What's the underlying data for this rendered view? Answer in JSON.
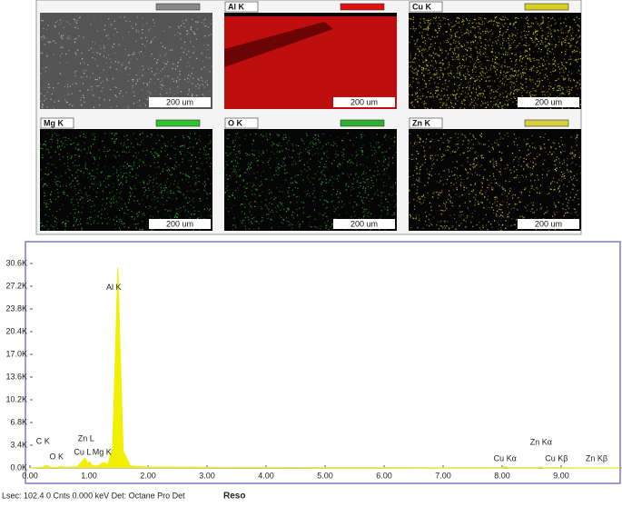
{
  "maps": [
    {
      "color": "#c8c8c8",
      "scale": "200 um"
    },
    {
      "label": "Al K",
      "color": "#e01010",
      "scale": "200 um"
    },
    {
      "label": "Cu K",
      "color": "#d8d020",
      "scale": "200 um"
    },
    {
      "label": "Mg K",
      "color": "#30c030",
      "scale": "200 um"
    },
    {
      "label": "O K",
      "color": "#30b030",
      "scale": "200 um"
    },
    {
      "label": "Zn K",
      "color": "#d8d040",
      "scale": "200 um"
    }
  ],
  "chart_data": {
    "type": "area",
    "x": [
      0,
      0.2,
      0.28,
      0.35,
      0.45,
      0.52,
      0.6,
      0.8,
      0.88,
      0.93,
      0.98,
      1.01,
      1.06,
      1.15,
      1.25,
      1.32,
      1.4,
      1.45,
      1.49,
      1.53,
      1.58,
      1.7,
      2.0,
      3,
      4,
      5,
      6,
      7,
      8,
      8.05,
      8.1,
      8.6,
      8.64,
      8.7,
      9,
      10
    ],
    "values": [
      0,
      100,
      400,
      100,
      80,
      250,
      80,
      200,
      900,
      1500,
      700,
      900,
      300,
      300,
      800,
      500,
      3000,
      18000,
      30000,
      17000,
      2500,
      300,
      150,
      100,
      80,
      60,
      50,
      40,
      40,
      200,
      40,
      40,
      150,
      40,
      30,
      20
    ],
    "color": "#f0f000",
    "xlim": [
      0,
      10
    ],
    "ylim": [
      0,
      33000
    ],
    "xticks": [
      {
        "value": 0,
        "label": "0.00"
      },
      {
        "value": 1,
        "label": "1.00"
      },
      {
        "value": 2,
        "label": "2.00"
      },
      {
        "value": 3,
        "label": "3.00"
      },
      {
        "value": 4,
        "label": "4.00"
      },
      {
        "value": 5,
        "label": "5.00"
      },
      {
        "value": 6,
        "label": "6.00"
      },
      {
        "value": 7,
        "label": "7.00"
      },
      {
        "value": 8,
        "label": "8.00"
      },
      {
        "value": 9,
        "label": "9.00"
      }
    ],
    "yticks": [
      {
        "value": 0,
        "label": "0.0K"
      },
      {
        "value": 3400,
        "label": "3.4K"
      },
      {
        "value": 6800,
        "label": "6.8K"
      },
      {
        "value": 10200,
        "label": "10.2K"
      },
      {
        "value": 13600,
        "label": "13.6K"
      },
      {
        "value": 17000,
        "label": "17.0K"
      },
      {
        "value": 20400,
        "label": "20.4K"
      },
      {
        "value": 23800,
        "label": "23.8K"
      },
      {
        "value": 27200,
        "label": "27.2K"
      },
      {
        "value": 30600,
        "label": "30.6K"
      }
    ],
    "annotations": [
      {
        "text": "C  K",
        "x": 0.22,
        "y": 3950
      },
      {
        "text": "O  K",
        "x": 0.45,
        "y": 1630
      },
      {
        "text": "Zn L",
        "x": 0.95,
        "y": 4350
      },
      {
        "text": "Cu L",
        "x": 0.89,
        "y": 2300
      },
      {
        "text": "Mg K",
        "x": 1.22,
        "y": 2300
      },
      {
        "text": "Al K",
        "x": 1.42,
        "y": 27000
      },
      {
        "text": "Cu Kα",
        "x": 8.05,
        "y": 1360
      },
      {
        "text": "Zn Kα",
        "x": 8.66,
        "y": 3800
      },
      {
        "text": "Cu Kβ",
        "x": 8.92,
        "y": 1360
      },
      {
        "text": "Zn Kβ",
        "x": 9.6,
        "y": 1360
      }
    ]
  },
  "footer": {
    "status": "Lsec: 102.4 0 Cnts  0.000 keV Det: Octane Pro Det",
    "reso": "Reso"
  }
}
